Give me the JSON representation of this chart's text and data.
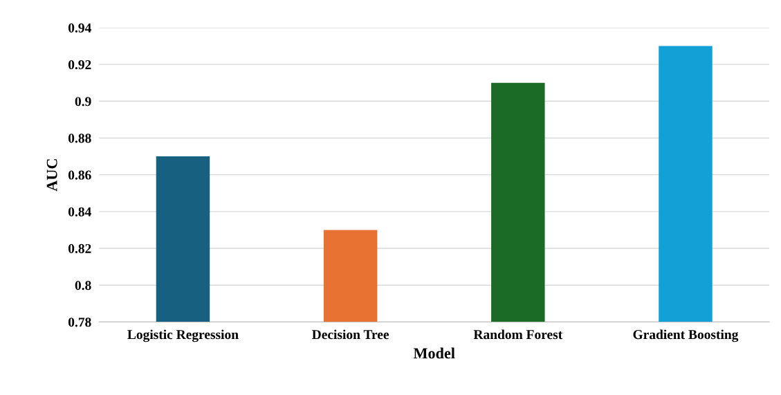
{
  "chart_data": {
    "type": "bar",
    "xlabel": "Model",
    "ylabel": "AUC",
    "categories": [
      "Logistic Regression",
      "Decision Tree",
      "Random Forest",
      "Gradient Boosting"
    ],
    "values": [
      0.87,
      0.83,
      0.91,
      0.93
    ],
    "colors": [
      "#17607f",
      "#e87232",
      "#1b6b27",
      "#12a0d7"
    ],
    "ylim": [
      0.78,
      0.94
    ],
    "yticks": [
      0.78,
      0.8,
      0.82,
      0.84,
      0.86,
      0.88,
      0.9,
      0.92,
      0.94
    ],
    "grid": "y"
  }
}
